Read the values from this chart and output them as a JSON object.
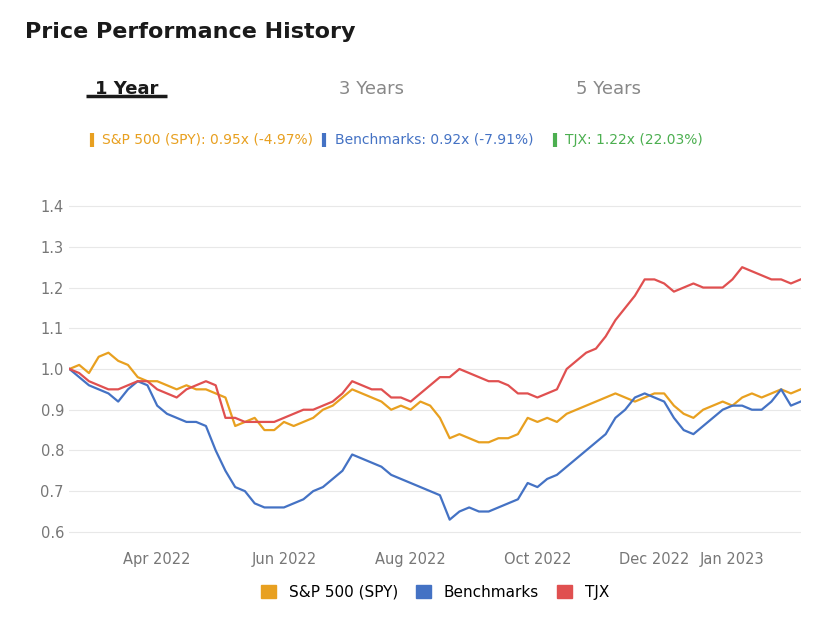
{
  "title": "Price Performance History",
  "tab_labels": [
    "1 Year",
    "3 Years",
    "5 Years"
  ],
  "active_tab": 0,
  "ann_spy_label": "S&P 500 (SPY): 0.95x (-4.97%)",
  "ann_bench_label": "Benchmarks: 0.92x (-7.91%)",
  "ann_tjx_label": "TJX: 1.22x (22.03%)",
  "spy_color": "#e8a020",
  "bench_color": "#4472c4",
  "tjx_color": "#e05050",
  "tjx_ann_color": "#4caf50",
  "background_color": "#ffffff",
  "grid_color": "#e8e8e8",
  "tick_color": "#777777",
  "title_color": "#1a1a1a",
  "tab_active_color": "#1a1a1a",
  "tab_inactive_color": "#888888",
  "ylim": [
    0.57,
    1.52
  ],
  "yticks": [
    0.6,
    0.7,
    0.8,
    0.9,
    1.0,
    1.1,
    1.2,
    1.3,
    1.4
  ],
  "spy_data": [
    1.0,
    1.01,
    0.99,
    1.03,
    1.04,
    1.02,
    1.01,
    0.98,
    0.97,
    0.97,
    0.96,
    0.95,
    0.96,
    0.95,
    0.95,
    0.94,
    0.93,
    0.86,
    0.87,
    0.88,
    0.85,
    0.85,
    0.87,
    0.86,
    0.87,
    0.88,
    0.9,
    0.91,
    0.93,
    0.95,
    0.94,
    0.93,
    0.92,
    0.9,
    0.91,
    0.9,
    0.92,
    0.91,
    0.88,
    0.83,
    0.84,
    0.83,
    0.82,
    0.82,
    0.83,
    0.83,
    0.84,
    0.88,
    0.87,
    0.88,
    0.87,
    0.89,
    0.9,
    0.91,
    0.92,
    0.93,
    0.94,
    0.93,
    0.92,
    0.93,
    0.94,
    0.94,
    0.91,
    0.89,
    0.88,
    0.9,
    0.91,
    0.92,
    0.91,
    0.93,
    0.94,
    0.93,
    0.94,
    0.95,
    0.94,
    0.95
  ],
  "bench_data": [
    1.0,
    0.98,
    0.96,
    0.95,
    0.94,
    0.92,
    0.95,
    0.97,
    0.96,
    0.91,
    0.89,
    0.88,
    0.87,
    0.87,
    0.86,
    0.8,
    0.75,
    0.71,
    0.7,
    0.67,
    0.66,
    0.66,
    0.66,
    0.67,
    0.68,
    0.7,
    0.71,
    0.73,
    0.75,
    0.79,
    0.78,
    0.77,
    0.76,
    0.74,
    0.73,
    0.72,
    0.71,
    0.7,
    0.69,
    0.63,
    0.65,
    0.66,
    0.65,
    0.65,
    0.66,
    0.67,
    0.68,
    0.72,
    0.71,
    0.73,
    0.74,
    0.76,
    0.78,
    0.8,
    0.82,
    0.84,
    0.88,
    0.9,
    0.93,
    0.94,
    0.93,
    0.92,
    0.88,
    0.85,
    0.84,
    0.86,
    0.88,
    0.9,
    0.91,
    0.91,
    0.9,
    0.9,
    0.92,
    0.95,
    0.91,
    0.92
  ],
  "tjx_data": [
    1.0,
    0.99,
    0.97,
    0.96,
    0.95,
    0.95,
    0.96,
    0.97,
    0.97,
    0.95,
    0.94,
    0.93,
    0.95,
    0.96,
    0.97,
    0.96,
    0.88,
    0.88,
    0.87,
    0.87,
    0.87,
    0.87,
    0.88,
    0.89,
    0.9,
    0.9,
    0.91,
    0.92,
    0.94,
    0.97,
    0.96,
    0.95,
    0.95,
    0.93,
    0.93,
    0.92,
    0.94,
    0.96,
    0.98,
    0.98,
    1.0,
    0.99,
    0.98,
    0.97,
    0.97,
    0.96,
    0.94,
    0.94,
    0.93,
    0.94,
    0.95,
    1.0,
    1.02,
    1.04,
    1.05,
    1.08,
    1.12,
    1.15,
    1.18,
    1.22,
    1.22,
    1.21,
    1.19,
    1.2,
    1.21,
    1.2,
    1.2,
    1.2,
    1.22,
    1.25,
    1.24,
    1.23,
    1.22,
    1.22,
    1.21,
    1.22
  ],
  "x_tick_positions": [
    9,
    22,
    35,
    48,
    60,
    68
  ],
  "x_tick_labels": [
    "Apr 2022",
    "Jun 2022",
    "Aug 2022",
    "Oct 2022",
    "Dec 2022",
    "Jan 2023"
  ]
}
